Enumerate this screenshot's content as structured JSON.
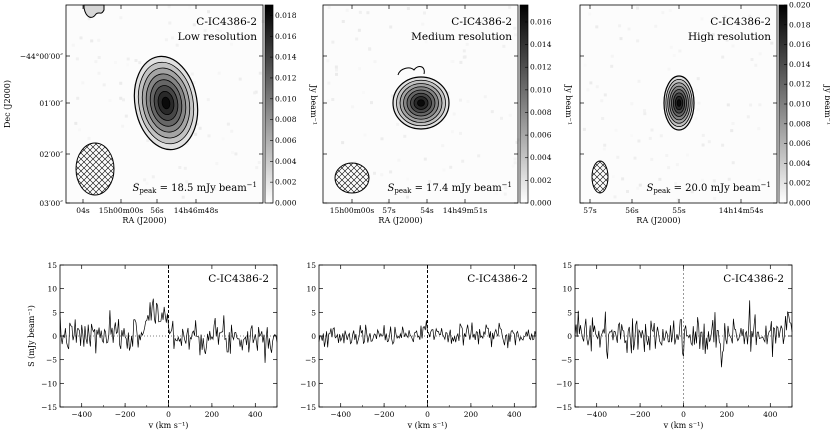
{
  "chart_data": [
    {
      "type": "heatmap",
      "panel": "map-low",
      "source": "C-IC4386-2",
      "resolution": "Low resolution",
      "peak_prefix": "S",
      "peak_sub": "peak",
      "peak_text": " = 18.5 mJy beam",
      "peak_sup": "−1",
      "peak_value": 18.5,
      "xlabel": "RA (J2000)",
      "ylabel": "Dec (J2000)",
      "xticks": [
        "04s",
        "15h00m00s",
        "56s",
        "14h46m48s"
      ],
      "yticks": [
        "−44°00′00″",
        "01′00″",
        "02′00″",
        "03′00″"
      ],
      "colorbar_label": "Jy beam⁻¹",
      "colorbar_ticks": [
        "0.000",
        "0.002",
        "0.004",
        "0.006",
        "0.008",
        "0.010",
        "0.012",
        "0.014",
        "0.016",
        "0.018"
      ],
      "colorbar_range": [
        0,
        0.019
      ]
    },
    {
      "type": "heatmap",
      "panel": "map-medium",
      "source": "C-IC4386-2",
      "resolution": "Medium resolution",
      "peak_prefix": "S",
      "peak_sub": "peak",
      "peak_text": " = 17.4 mJy beam",
      "peak_sup": "−1",
      "peak_value": 17.4,
      "xlabel": "RA (J2000)",
      "xticks": [
        "15h00m00s",
        "57s",
        "54s",
        "14h49m51s"
      ],
      "colorbar_label": "Jy beam⁻¹",
      "colorbar_ticks": [
        "0.000",
        "0.002",
        "0.004",
        "0.006",
        "0.008",
        "0.010",
        "0.012",
        "0.014",
        "0.016"
      ],
      "colorbar_range": [
        0,
        0.0175
      ]
    },
    {
      "type": "heatmap",
      "panel": "map-high",
      "source": "C-IC4386-2",
      "resolution": "High resolution",
      "peak_prefix": "S",
      "peak_sub": "peak",
      "peak_text": " = 20.0 mJy beam",
      "peak_sup": "−1",
      "peak_value": 20.0,
      "xlabel": "RA (J2000)",
      "xticks": [
        "57s",
        "56s",
        "55s",
        "14h14m54s"
      ],
      "colorbar_label": "Jy beam⁻¹",
      "colorbar_ticks": [
        "0.000",
        "0.002",
        "0.004",
        "0.006",
        "0.008",
        "0.010",
        "0.012",
        "0.014",
        "0.016",
        "0.018",
        "0.020"
      ],
      "colorbar_range": [
        0,
        0.02
      ]
    },
    {
      "type": "line",
      "panel": "spectrum-1",
      "label": "C-IC4386-2",
      "xlabel": "v (km s⁻¹)",
      "ylabel": "S (mJy beam⁻¹)",
      "xlim": [
        -500,
        500
      ],
      "ylim": [
        -15,
        15
      ],
      "xticks": [
        -400,
        -200,
        0,
        200,
        400
      ],
      "yticks": [
        -15,
        -10,
        -5,
        0,
        5,
        10,
        15
      ],
      "noise_rms": 1.8,
      "features": [
        {
          "center": -70,
          "width": 30,
          "peak": 5.5
        },
        {
          "center": -15,
          "width": 12,
          "peak": 4
        }
      ]
    },
    {
      "type": "line",
      "panel": "spectrum-2",
      "label": "C-IC4386-2",
      "xlabel": "v (km s⁻¹)",
      "xlim": [
        -500,
        500
      ],
      "ylim": [
        -15,
        15
      ],
      "xticks": [
        -400,
        -200,
        0,
        200,
        400
      ],
      "yticks": [
        -15,
        -10,
        -5,
        0,
        5,
        10,
        15
      ],
      "noise_rms": 1.1,
      "features": [
        {
          "center": -20,
          "width": 10,
          "peak": 2
        }
      ]
    },
    {
      "type": "line",
      "panel": "spectrum-3",
      "label": "C-IC4386-2",
      "xlabel": "v (km s⁻¹)",
      "xlim": [
        -500,
        500
      ],
      "ylim": [
        -15,
        15
      ],
      "xticks": [
        -400,
        -200,
        0,
        200,
        400
      ],
      "yticks": [
        -15,
        -10,
        -5,
        0,
        5,
        10,
        15
      ],
      "noise_rms": 2.3,
      "features": []
    }
  ]
}
